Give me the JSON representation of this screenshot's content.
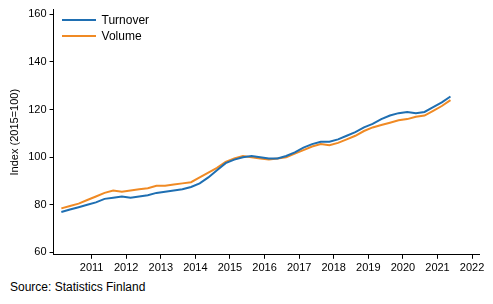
{
  "chart_data": {
    "type": "line",
    "y_label": "Index (2015=100)",
    "source": "Source: Statistics Finland",
    "x": [
      2010.125,
      2010.375,
      2010.625,
      2010.875,
      2011.125,
      2011.375,
      2011.625,
      2011.875,
      2012.125,
      2012.375,
      2012.625,
      2012.875,
      2013.125,
      2013.375,
      2013.625,
      2013.875,
      2014.125,
      2014.375,
      2014.625,
      2014.875,
      2015.125,
      2015.375,
      2015.625,
      2015.875,
      2016.125,
      2016.375,
      2016.625,
      2016.875,
      2017.125,
      2017.375,
      2017.625,
      2017.875,
      2018.125,
      2018.375,
      2018.625,
      2018.875,
      2019.125,
      2019.375,
      2019.625,
      2019.875,
      2020.125,
      2020.375,
      2020.625,
      2020.875,
      2021.125,
      2021.375
    ],
    "series": [
      {
        "name": "Turnover",
        "color": "#1f6fb2",
        "values": [
          77,
          78,
          79,
          80,
          81,
          82.5,
          83,
          83.5,
          83,
          83.5,
          84,
          85,
          85.5,
          86,
          86.5,
          87.5,
          89,
          91.5,
          94.5,
          97.5,
          99,
          100,
          100.5,
          100,
          99.5,
          99.5,
          100.5,
          102,
          104,
          105.5,
          106.5,
          106.5,
          107.5,
          109,
          110.5,
          112.5,
          114,
          116,
          117.5,
          118.5,
          119,
          118.5,
          119,
          121,
          123,
          125.5
        ]
      },
      {
        "name": "Volume",
        "color": "#f08a24",
        "values": [
          78.5,
          79.5,
          80.5,
          82,
          83.5,
          85,
          86,
          85.5,
          86,
          86.5,
          87,
          88,
          88,
          88.5,
          89,
          89.5,
          91.5,
          93.5,
          95.5,
          98,
          99.5,
          100.5,
          100,
          99.5,
          99,
          99.5,
          100,
          101.5,
          103,
          104.5,
          105.5,
          105,
          106,
          107.5,
          109,
          111,
          112.5,
          113.5,
          114.5,
          115.5,
          116,
          117,
          117.5,
          119.5,
          121.5,
          124
        ]
      }
    ],
    "xlim": [
      2009.9,
      2022.2
    ],
    "xticks": [
      2011,
      2012,
      2013,
      2014,
      2015,
      2016,
      2017,
      2018,
      2019,
      2020,
      2021,
      2022
    ],
    "ylim": [
      59,
      162
    ],
    "yticks": [
      60,
      80,
      100,
      120,
      140,
      160
    ],
    "grid": false,
    "legend": "upper left"
  }
}
